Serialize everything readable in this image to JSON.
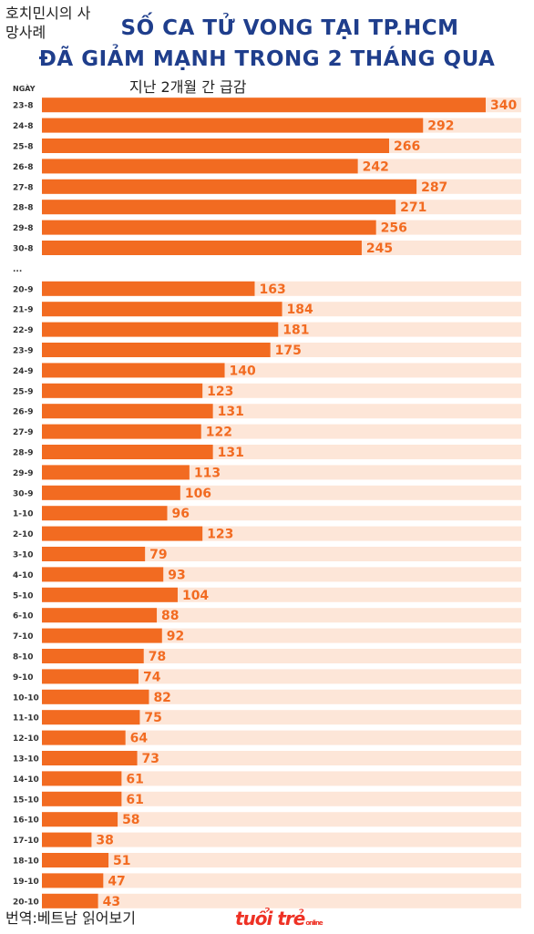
{
  "overlay": {
    "top_left": "호치민시의 사망사례",
    "subtitle": "지난 2개월 간 급감",
    "credit": "번역:베트남 읽어보기"
  },
  "title": {
    "line1": "SỐ CA TỬ VONG TẠI TP.HCM",
    "line2": "ĐÃ GIẢM MẠNH TRONG 2 THÁNG QUA"
  },
  "logo": {
    "main": "tuổi trẻ",
    "small": "online"
  },
  "colors": {
    "bar": "#f26b21",
    "stripe": "#fde6d8",
    "title": "#1f3e8c",
    "value": "#f26b21"
  },
  "chart_data": {
    "type": "bar",
    "orientation": "horizontal",
    "axis_label": "NGÀY",
    "gap_label": "...",
    "xlim": [
      0,
      340
    ],
    "categories": [
      "23-8",
      "24-8",
      "25-8",
      "26-8",
      "27-8",
      "28-8",
      "29-8",
      "30-8",
      "...",
      "20-9",
      "21-9",
      "22-9",
      "23-9",
      "24-9",
      "25-9",
      "26-9",
      "27-9",
      "28-9",
      "29-9",
      "30-9",
      "1-10",
      "2-10",
      "3-10",
      "4-10",
      "5-10",
      "6-10",
      "7-10",
      "8-10",
      "9-10",
      "10-10",
      "11-10",
      "12-10",
      "13-10",
      "14-10",
      "15-10",
      "16-10",
      "17-10",
      "18-10",
      "19-10",
      "20-10"
    ],
    "values": [
      340,
      292,
      266,
      242,
      287,
      271,
      256,
      245,
      null,
      163,
      184,
      181,
      175,
      140,
      123,
      131,
      122,
      131,
      113,
      106,
      96,
      123,
      79,
      93,
      104,
      88,
      92,
      78,
      74,
      82,
      75,
      64,
      73,
      61,
      61,
      58,
      38,
      51,
      47,
      43
    ]
  }
}
